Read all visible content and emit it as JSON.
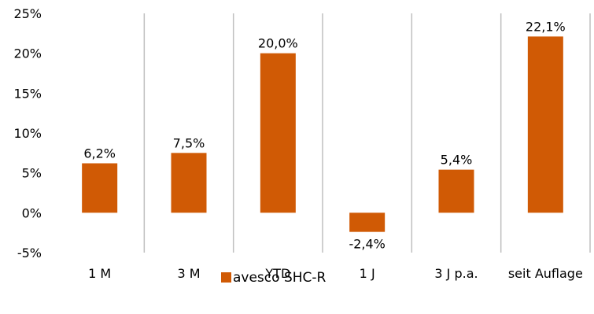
{
  "chart_data": {
    "type": "bar",
    "categories": [
      "1 M",
      "3 M",
      "YTD",
      "1 J",
      "3 J p.a.",
      "seit Auflage"
    ],
    "series": [
      {
        "name": "avesco SHC-R",
        "values": [
          6.2,
          7.5,
          20.0,
          -2.4,
          5.4,
          22.1
        ],
        "value_labels": [
          "6,2%",
          "7,5%",
          "20,0%",
          "-2,4%",
          "5,4%",
          "22,1%"
        ],
        "color": "#D05A05"
      }
    ],
    "y_ticks": [
      {
        "value": 25,
        "label": "25%"
      },
      {
        "value": 20,
        "label": "20%"
      },
      {
        "value": 15,
        "label": "15%"
      },
      {
        "value": 10,
        "label": "10%"
      },
      {
        "value": 5,
        "label": "5%"
      },
      {
        "value": 0,
        "label": "0%"
      },
      {
        "value": -5,
        "label": "-5%"
      }
    ],
    "ylim": [
      -5,
      25
    ],
    "grid": "vertical category separators",
    "legend": "bottom-center",
    "title": "",
    "xlabel": "",
    "ylabel": ""
  },
  "colors": {
    "bar": "#D05A05",
    "grid": "#BFBFBF",
    "text": "#000000"
  }
}
